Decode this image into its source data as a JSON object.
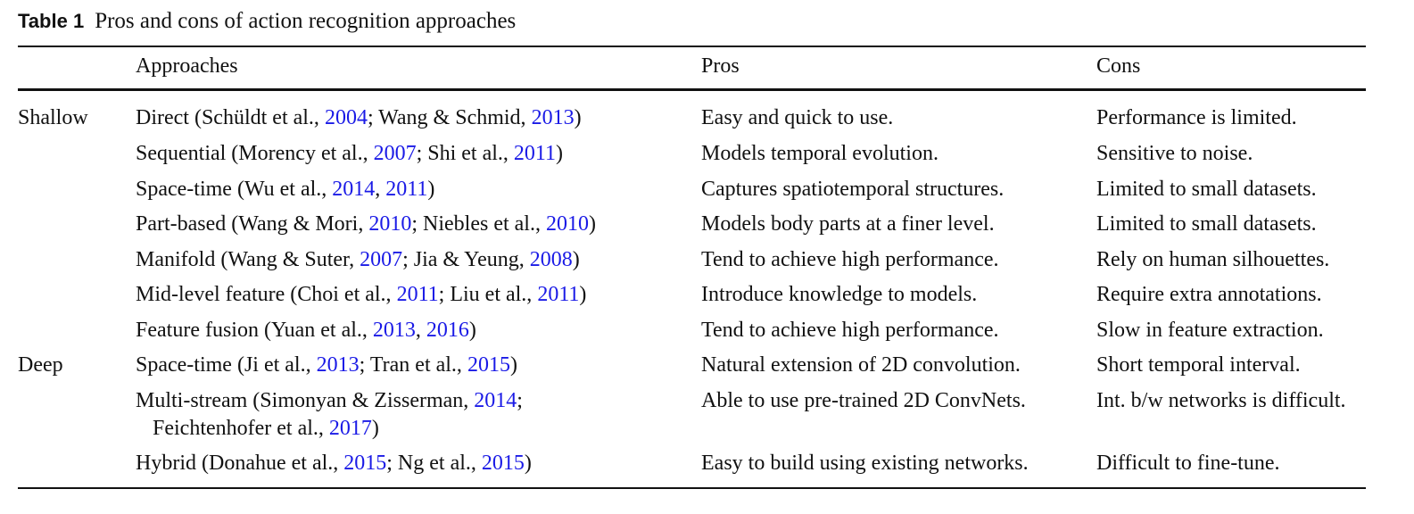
{
  "caption": {
    "label": "Table 1",
    "text": "Pros and cons of action recognition approaches"
  },
  "headers": {
    "approaches": "Approaches",
    "pros": "Pros",
    "cons": "Cons"
  },
  "groups": {
    "shallow": "Shallow",
    "deep": "Deep"
  },
  "rows": [
    {
      "approach": [
        {
          "t": "Direct (Schüldt et al., "
        },
        {
          "t": "2004",
          "link": true
        },
        {
          "t": "; Wang & Schmid, "
        },
        {
          "t": "2013",
          "link": true
        },
        {
          "t": ")"
        }
      ],
      "pros": "Easy and quick to use.",
      "cons": "Performance is limited."
    },
    {
      "approach": [
        {
          "t": "Sequential (Morency et al., "
        },
        {
          "t": "2007",
          "link": true
        },
        {
          "t": "; Shi et al., "
        },
        {
          "t": "2011",
          "link": true
        },
        {
          "t": ")"
        }
      ],
      "pros": "Models temporal evolution.",
      "cons": "Sensitive to noise."
    },
    {
      "approach": [
        {
          "t": "Space-time (Wu et al., "
        },
        {
          "t": "2014",
          "link": true
        },
        {
          "t": ", "
        },
        {
          "t": "2011",
          "link": true
        },
        {
          "t": ")"
        }
      ],
      "pros": "Captures spatiotemporal structures.",
      "cons": "Limited to small datasets."
    },
    {
      "approach": [
        {
          "t": "Part-based (Wang & Mori, "
        },
        {
          "t": "2010",
          "link": true
        },
        {
          "t": "; Niebles et al., "
        },
        {
          "t": "2010",
          "link": true
        },
        {
          "t": ")"
        }
      ],
      "pros": "Models body parts at a finer level.",
      "cons": "Limited to small datasets."
    },
    {
      "approach": [
        {
          "t": "Manifold (Wang & Suter, "
        },
        {
          "t": "2007",
          "link": true
        },
        {
          "t": "; Jia & Yeung, "
        },
        {
          "t": "2008",
          "link": true
        },
        {
          "t": ")"
        }
      ],
      "pros": "Tend to achieve high performance.",
      "cons": "Rely on human silhouettes."
    },
    {
      "approach": [
        {
          "t": "Mid-level feature (Choi et al., "
        },
        {
          "t": "2011",
          "link": true
        },
        {
          "t": "; Liu et al., "
        },
        {
          "t": "2011",
          "link": true
        },
        {
          "t": ")"
        }
      ],
      "pros": "Introduce knowledge to models.",
      "cons": "Require extra annotations."
    },
    {
      "approach": [
        {
          "t": "Feature fusion (Yuan et al., "
        },
        {
          "t": "2013",
          "link": true
        },
        {
          "t": ", "
        },
        {
          "t": "2016",
          "link": true
        },
        {
          "t": ")"
        }
      ],
      "pros": "Tend to achieve high performance.",
      "cons": "Slow in feature extraction."
    },
    {
      "approach": [
        {
          "t": "Space-time (Ji et al., "
        },
        {
          "t": "2013",
          "link": true
        },
        {
          "t": "; Tran et al., "
        },
        {
          "t": "2015",
          "link": true
        },
        {
          "t": ")"
        }
      ],
      "pros": "Natural extension of 2D convolution.",
      "cons": "Short temporal interval."
    },
    {
      "approach": [
        {
          "t": "Multi-stream (Simonyan & Zisserman, "
        },
        {
          "t": "2014",
          "link": true
        },
        {
          "t": ";"
        },
        {
          "br": true
        },
        {
          "t": "Feichtenhofer et al., "
        },
        {
          "t": "2017",
          "link": true
        },
        {
          "t": ")"
        }
      ],
      "pros": "Able to use pre-trained 2D ConvNets.",
      "cons": "Int. b/w networks is difficult."
    },
    {
      "approach": [
        {
          "t": "Hybrid (Donahue et al., "
        },
        {
          "t": "2015",
          "link": true
        },
        {
          "t": "; Ng et al., "
        },
        {
          "t": "2015",
          "link": true
        },
        {
          "t": ")"
        }
      ],
      "pros": "Easy to build using existing networks.",
      "cons": "Difficult to fine-tune."
    }
  ]
}
